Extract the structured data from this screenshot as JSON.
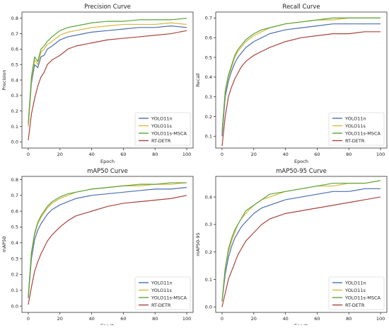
{
  "colors": {
    "YOLO11n": "#4a6fb0",
    "YOLO11s": "#d8b83a",
    "YOLO11s-MSCA": "#5aa43c",
    "RT-DETR": "#a8453c",
    "axis": "#333333",
    "legend_border": "#cccccc"
  },
  "chart_data": [
    {
      "type": "line",
      "title": "Precision Curve",
      "xlabel": "Epoch",
      "ylabel": "Precision",
      "xlim": [
        -4,
        104
      ],
      "ylim": [
        -0.04,
        0.84
      ],
      "xticks": [
        0,
        20,
        40,
        60,
        80,
        100
      ],
      "yticks": [
        0.0,
        0.1,
        0.2,
        0.3,
        0.4,
        0.5,
        0.6,
        0.7,
        0.8
      ],
      "ytick_labels": [
        "0.0",
        "0.1",
        "0.2",
        "0.3",
        "0.4",
        "0.5",
        "0.6",
        "0.7",
        "0.8"
      ],
      "grid": false,
      "legend_position": "bottom-right",
      "series": [
        {
          "name": "YOLO11n",
          "x": [
            0,
            2,
            4,
            6,
            8,
            10,
            12,
            15,
            20,
            25,
            30,
            40,
            50,
            60,
            70,
            80,
            90,
            100
          ],
          "values": [
            0.1,
            0.38,
            0.5,
            0.48,
            0.55,
            0.56,
            0.6,
            0.62,
            0.66,
            0.68,
            0.69,
            0.71,
            0.72,
            0.73,
            0.74,
            0.74,
            0.75,
            0.74
          ]
        },
        {
          "name": "YOLO11s",
          "x": [
            0,
            2,
            4,
            6,
            8,
            10,
            12,
            15,
            20,
            25,
            30,
            40,
            50,
            60,
            70,
            80,
            90,
            100
          ],
          "values": [
            0.1,
            0.4,
            0.53,
            0.5,
            0.58,
            0.6,
            0.63,
            0.65,
            0.69,
            0.71,
            0.72,
            0.74,
            0.75,
            0.76,
            0.76,
            0.76,
            0.77,
            0.76
          ]
        },
        {
          "name": "YOLO11s-MSCA",
          "x": [
            0,
            2,
            4,
            6,
            8,
            10,
            12,
            15,
            20,
            25,
            30,
            40,
            50,
            60,
            70,
            80,
            90,
            100
          ],
          "values": [
            0.12,
            0.42,
            0.55,
            0.52,
            0.6,
            0.62,
            0.65,
            0.68,
            0.72,
            0.74,
            0.75,
            0.77,
            0.78,
            0.78,
            0.79,
            0.79,
            0.79,
            0.8
          ]
        },
        {
          "name": "RT-DETR",
          "x": [
            0,
            2,
            4,
            6,
            8,
            10,
            12,
            15,
            20,
            25,
            30,
            40,
            50,
            60,
            70,
            80,
            90,
            100
          ],
          "values": [
            0.01,
            0.18,
            0.28,
            0.36,
            0.42,
            0.45,
            0.5,
            0.53,
            0.56,
            0.6,
            0.62,
            0.64,
            0.66,
            0.67,
            0.68,
            0.69,
            0.7,
            0.72
          ]
        }
      ]
    },
    {
      "type": "line",
      "title": "Recall Curve",
      "xlabel": "Epoch",
      "ylabel": "Recall",
      "xlim": [
        -4,
        104
      ],
      "ylim": [
        0.04,
        0.73
      ],
      "xticks": [
        0,
        20,
        40,
        60,
        80,
        100
      ],
      "yticks": [
        0.1,
        0.2,
        0.3,
        0.4,
        0.5,
        0.6,
        0.7
      ],
      "ytick_labels": [
        "0.1",
        "0.2",
        "0.3",
        "0.4",
        "0.5",
        "0.6",
        "0.7"
      ],
      "grid": false,
      "legend_position": "bottom-right",
      "series": [
        {
          "name": "YOLO11n",
          "x": [
            0,
            2,
            4,
            6,
            8,
            10,
            12,
            15,
            20,
            25,
            30,
            40,
            50,
            60,
            70,
            80,
            90,
            100
          ],
          "values": [
            0.1,
            0.3,
            0.38,
            0.43,
            0.47,
            0.5,
            0.52,
            0.55,
            0.58,
            0.6,
            0.62,
            0.64,
            0.65,
            0.66,
            0.67,
            0.67,
            0.67,
            0.67
          ]
        },
        {
          "name": "YOLO11s",
          "x": [
            0,
            2,
            4,
            6,
            8,
            10,
            12,
            15,
            20,
            25,
            30,
            40,
            50,
            60,
            70,
            80,
            90,
            100
          ],
          "values": [
            0.12,
            0.32,
            0.4,
            0.45,
            0.5,
            0.53,
            0.55,
            0.58,
            0.61,
            0.63,
            0.65,
            0.67,
            0.68,
            0.69,
            0.69,
            0.7,
            0.7,
            0.7
          ]
        },
        {
          "name": "YOLO11s-MSCA",
          "x": [
            0,
            2,
            4,
            6,
            8,
            10,
            12,
            15,
            20,
            25,
            30,
            40,
            50,
            60,
            70,
            80,
            90,
            100
          ],
          "values": [
            0.12,
            0.33,
            0.41,
            0.46,
            0.51,
            0.54,
            0.56,
            0.59,
            0.62,
            0.64,
            0.65,
            0.67,
            0.68,
            0.69,
            0.7,
            0.7,
            0.7,
            0.7
          ]
        },
        {
          "name": "RT-DETR",
          "x": [
            0,
            2,
            4,
            6,
            8,
            10,
            12,
            15,
            20,
            25,
            30,
            40,
            50,
            60,
            70,
            80,
            90,
            100
          ],
          "values": [
            0.05,
            0.2,
            0.3,
            0.35,
            0.39,
            0.42,
            0.45,
            0.48,
            0.51,
            0.53,
            0.55,
            0.58,
            0.6,
            0.61,
            0.62,
            0.62,
            0.63,
            0.63
          ]
        }
      ]
    },
    {
      "type": "line",
      "title": "mAP50 Curve",
      "xlabel": "Epoch",
      "ylabel": "mAP50",
      "xlim": [
        -4,
        104
      ],
      "ylim": [
        -0.04,
        0.82
      ],
      "xticks": [
        0,
        20,
        40,
        60,
        80,
        100
      ],
      "yticks": [
        0.0,
        0.1,
        0.2,
        0.3,
        0.4,
        0.5,
        0.6,
        0.7,
        0.8
      ],
      "ytick_labels": [
        "0.0",
        "0.1",
        "0.2",
        "0.3",
        "0.4",
        "0.5",
        "0.6",
        "0.7",
        "0.8"
      ],
      "grid": false,
      "legend_position": "bottom-right",
      "series": [
        {
          "name": "YOLO11n",
          "x": [
            0,
            2,
            4,
            6,
            8,
            10,
            12,
            15,
            20,
            25,
            30,
            40,
            50,
            60,
            70,
            80,
            90,
            100
          ],
          "values": [
            0.05,
            0.3,
            0.42,
            0.48,
            0.52,
            0.55,
            0.58,
            0.61,
            0.64,
            0.66,
            0.68,
            0.7,
            0.71,
            0.72,
            0.73,
            0.74,
            0.74,
            0.75
          ]
        },
        {
          "name": "YOLO11s",
          "x": [
            0,
            2,
            4,
            6,
            8,
            10,
            12,
            15,
            20,
            25,
            30,
            40,
            50,
            60,
            70,
            80,
            90,
            100
          ],
          "values": [
            0.06,
            0.33,
            0.45,
            0.52,
            0.56,
            0.59,
            0.62,
            0.65,
            0.68,
            0.7,
            0.72,
            0.74,
            0.75,
            0.76,
            0.76,
            0.77,
            0.77,
            0.78
          ]
        },
        {
          "name": "YOLO11s-MSCA",
          "x": [
            0,
            2,
            4,
            6,
            8,
            10,
            12,
            15,
            20,
            25,
            30,
            40,
            50,
            60,
            70,
            80,
            90,
            100
          ],
          "values": [
            0.06,
            0.34,
            0.46,
            0.53,
            0.57,
            0.6,
            0.63,
            0.66,
            0.69,
            0.71,
            0.72,
            0.74,
            0.75,
            0.76,
            0.77,
            0.77,
            0.78,
            0.78
          ]
        },
        {
          "name": "RT-DETR",
          "x": [
            0,
            2,
            4,
            6,
            8,
            10,
            12,
            15,
            20,
            25,
            30,
            40,
            50,
            60,
            70,
            80,
            90,
            100
          ],
          "values": [
            0.01,
            0.12,
            0.22,
            0.28,
            0.33,
            0.37,
            0.41,
            0.45,
            0.5,
            0.54,
            0.57,
            0.6,
            0.63,
            0.65,
            0.66,
            0.67,
            0.68,
            0.7
          ]
        }
      ]
    },
    {
      "type": "line",
      "title": "mAP50-95 Curve",
      "xlabel": "Epoch",
      "ylabel": "mAP50-95",
      "xlim": [
        -4,
        104
      ],
      "ylim": [
        -0.02,
        0.475
      ],
      "xticks": [
        0,
        20,
        40,
        60,
        80,
        100
      ],
      "yticks": [
        0.0,
        0.1,
        0.2,
        0.3,
        0.4
      ],
      "ytick_labels": [
        "0.0",
        "0.1",
        "0.2",
        "0.3",
        "0.4"
      ],
      "grid": false,
      "legend_position": "bottom-right",
      "series": [
        {
          "name": "YOLO11n",
          "x": [
            0,
            2,
            4,
            6,
            8,
            10,
            12,
            15,
            20,
            25,
            30,
            40,
            50,
            60,
            70,
            80,
            90,
            100
          ],
          "values": [
            0.02,
            0.12,
            0.18,
            0.22,
            0.25,
            0.27,
            0.29,
            0.31,
            0.34,
            0.36,
            0.37,
            0.39,
            0.4,
            0.41,
            0.42,
            0.42,
            0.43,
            0.43
          ]
        },
        {
          "name": "YOLO11s",
          "x": [
            0,
            2,
            4,
            6,
            8,
            10,
            12,
            15,
            20,
            25,
            30,
            40,
            50,
            60,
            70,
            80,
            90,
            100
          ],
          "values": [
            0.02,
            0.14,
            0.2,
            0.24,
            0.27,
            0.3,
            0.32,
            0.34,
            0.37,
            0.39,
            0.4,
            0.42,
            0.43,
            0.44,
            0.44,
            0.45,
            0.45,
            0.46
          ]
        },
        {
          "name": "YOLO11s-MSCA",
          "x": [
            0,
            2,
            4,
            6,
            8,
            10,
            12,
            15,
            20,
            25,
            30,
            40,
            50,
            60,
            70,
            80,
            90,
            100
          ],
          "values": [
            0.02,
            0.14,
            0.21,
            0.25,
            0.28,
            0.3,
            0.32,
            0.35,
            0.37,
            0.39,
            0.41,
            0.42,
            0.43,
            0.44,
            0.45,
            0.45,
            0.45,
            0.46
          ]
        },
        {
          "name": "RT-DETR",
          "x": [
            0,
            2,
            4,
            6,
            8,
            10,
            12,
            15,
            20,
            25,
            30,
            40,
            50,
            60,
            70,
            80,
            90,
            100
          ],
          "values": [
            0.0,
            0.05,
            0.1,
            0.13,
            0.16,
            0.19,
            0.21,
            0.24,
            0.27,
            0.3,
            0.32,
            0.34,
            0.35,
            0.36,
            0.37,
            0.38,
            0.39,
            0.4
          ]
        }
      ]
    }
  ]
}
